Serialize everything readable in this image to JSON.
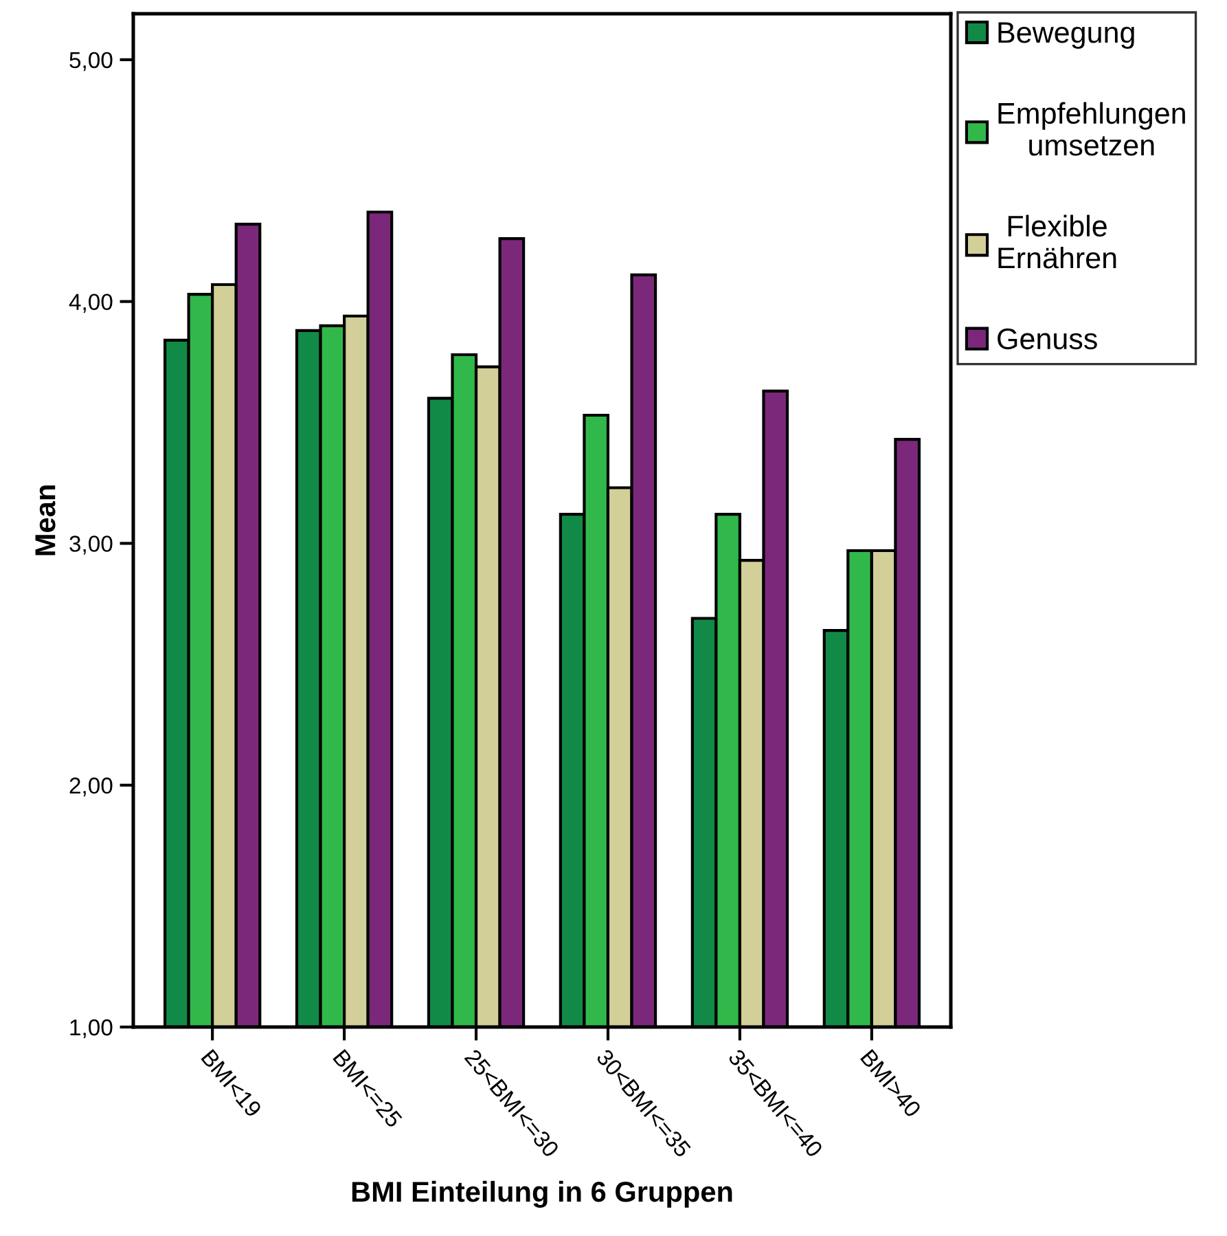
{
  "chart_data": {
    "type": "bar",
    "xlabel": "BMI Einteilung in 6 Gruppen",
    "ylabel": "Mean",
    "categories": [
      "BMI<19",
      "BMI<=25",
      "25<BMI<=30",
      "30<BMI<=35",
      "35<BMI<=40",
      "BMI>40"
    ],
    "series": [
      {
        "name": "Bewegung",
        "color": "#128a47",
        "values": [
          3.84,
          3.88,
          3.6,
          3.12,
          2.69,
          2.64
        ]
      },
      {
        "name": "Empfehlungen\numsetzen",
        "color": "#31b84a",
        "values": [
          4.03,
          3.9,
          3.78,
          3.53,
          3.12,
          2.97
        ]
      },
      {
        "name": "Flexible\nErnähren",
        "color": "#d3cf98",
        "values": [
          4.07,
          3.94,
          3.73,
          3.23,
          2.93,
          2.97
        ]
      },
      {
        "name": "Genuss",
        "color": "#7b287b",
        "values": [
          4.32,
          4.37,
          4.26,
          4.11,
          3.63,
          3.43
        ]
      }
    ],
    "ylim": [
      1,
      5.19
    ],
    "yticks": [
      {
        "value": 1,
        "label": "1,00"
      },
      {
        "value": 2,
        "label": "2,00"
      },
      {
        "value": 3,
        "label": "3,00"
      },
      {
        "value": 4,
        "label": "4,00"
      },
      {
        "value": 5,
        "label": "5,00"
      }
    ],
    "legend": "right",
    "grid": false
  }
}
